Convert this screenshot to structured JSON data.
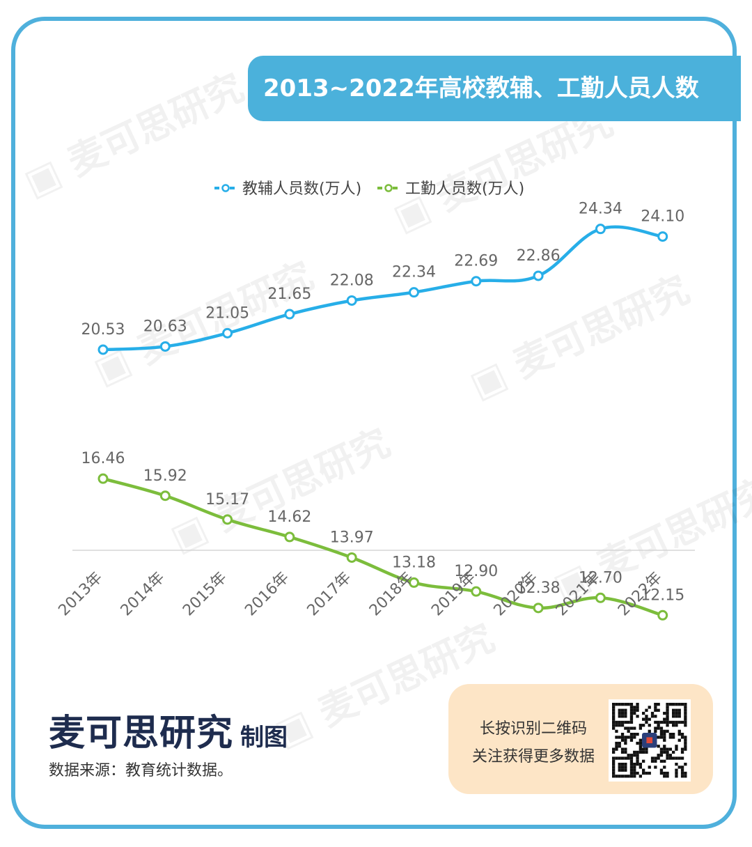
{
  "title": "2013~2022年高校教辅、工勤人员人数",
  "watermark_text": "麦可思研究",
  "colors": {
    "frame": "#4fb0dc",
    "banner": "#4bb1db",
    "series1": "#27aee8",
    "series2": "#7cbd3c",
    "qr_card": "#fde5c6",
    "brand": "#1e2c4e"
  },
  "chart_data": {
    "type": "line",
    "categories": [
      "2013年",
      "2014年",
      "2015年",
      "2016年",
      "2017年",
      "2018年",
      "2019年",
      "2020年",
      "2021年",
      "2022年"
    ],
    "series": [
      {
        "name": "教辅人员数(万人)",
        "values": [
          20.53,
          20.63,
          21.05,
          21.65,
          22.08,
          22.34,
          22.69,
          22.86,
          24.34,
          24.1
        ],
        "labels": [
          "20.53",
          "20.63",
          "21.05",
          "21.65",
          "22.08",
          "22.34",
          "22.69",
          "22.86",
          "24.34",
          "24.10"
        ]
      },
      {
        "name": "工勤人员数(万人)",
        "values": [
          16.46,
          15.92,
          15.17,
          14.62,
          13.97,
          13.18,
          12.9,
          12.38,
          12.7,
          12.15
        ],
        "labels": [
          "16.46",
          "15.92",
          "15.17",
          "14.62",
          "13.97",
          "13.18",
          "12.90",
          "12.38",
          "12.70",
          "12.15"
        ]
      }
    ],
    "ylim": [
      0,
      30
    ],
    "grid": false,
    "legend_position": "top-center",
    "xlabel": "",
    "ylabel": ""
  },
  "footer": {
    "brand": "麦可思研究",
    "brand_suffix": "制图",
    "source": "数据来源：教育统计数据。",
    "qr_line1": "长按识别二维码",
    "qr_line2": "关注获得更多数据"
  }
}
